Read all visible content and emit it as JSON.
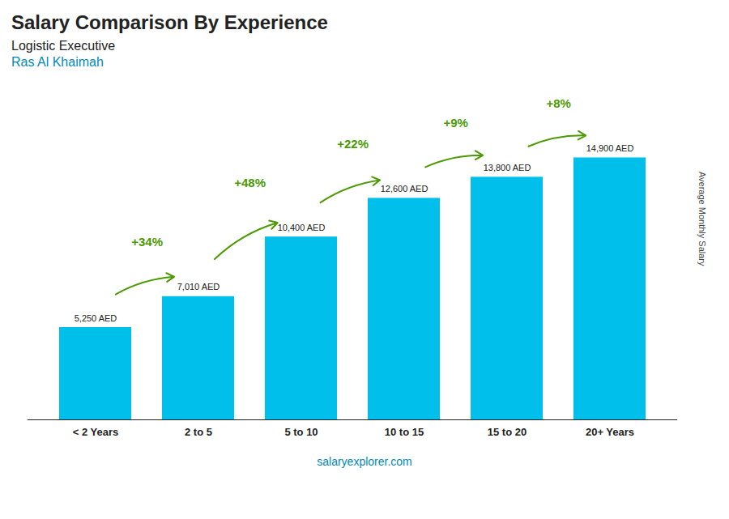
{
  "chart_data": {
    "type": "bar",
    "title": "Salary Comparison By Experience",
    "subtitle": [
      "Logistic Executive",
      "Ras Al Khaimah"
    ],
    "ylabel": "Average Monthly Salary",
    "caption": "salaryexplorer.com",
    "categories": [
      "< 2 Years",
      "2 to 5",
      "5 to 10",
      "10 to 15",
      "15 to 20",
      "20+ Years"
    ],
    "values": [
      5250,
      7010,
      10400,
      12600,
      13800,
      14900
    ],
    "value_labels": [
      "5,250 AED",
      "7,010 AED",
      "10,400 AED",
      "12,600 AED",
      "13,800 AED",
      "14,900 AED"
    ],
    "data_labels": true,
    "annotations": [
      "+34%",
      "+48%",
      "+22%",
      "+9%",
      "+8%"
    ],
    "color": "#00BFEA",
    "ylim": [
      0,
      17500
    ],
    "tick_labels": "x",
    "grid": false
  }
}
